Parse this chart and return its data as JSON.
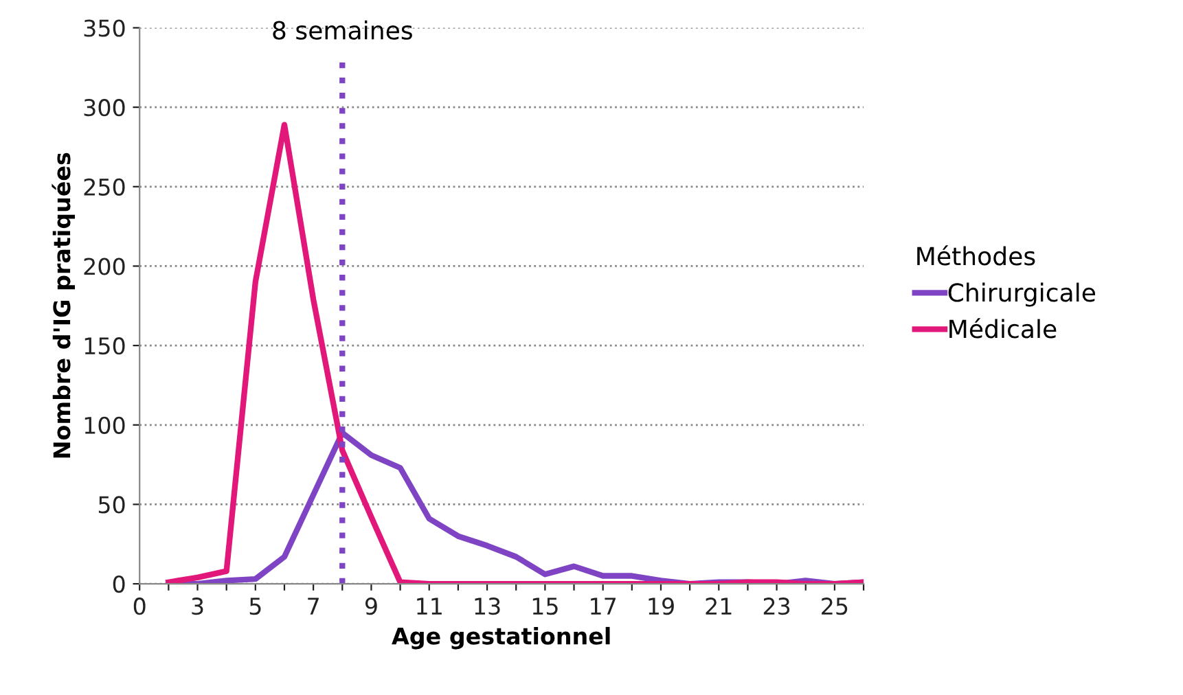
{
  "chart_data": {
    "type": "line",
    "xlabel": "Age gestationnel",
    "ylabel": "Nombre d'IG pratiquées",
    "legend_title": "Méthodes",
    "categories": [
      "0",
      null,
      "3",
      null,
      "5",
      null,
      "7",
      null,
      "9",
      null,
      "11",
      null,
      "13",
      null,
      "15",
      null,
      "17",
      null,
      "19",
      null,
      "21",
      null,
      "23",
      null,
      "25",
      null
    ],
    "series": [
      {
        "name": "Chirurgicale",
        "color": "#7f44c4",
        "values": [
          null,
          0,
          0,
          2,
          3,
          17,
          56,
          95,
          81,
          73,
          41,
          30,
          24,
          17,
          6,
          11,
          5,
          5,
          2,
          0,
          1,
          1,
          0,
          2,
          0,
          1
        ]
      },
      {
        "name": "Médicale",
        "color": "#e2177a",
        "values": [
          null,
          1,
          4,
          8,
          190,
          289,
          179,
          84,
          42,
          1,
          0,
          0,
          0,
          0,
          0,
          0,
          0,
          0,
          0,
          0,
          0,
          1,
          1,
          0,
          0,
          1
        ]
      }
    ],
    "ylim": [
      0,
      350
    ],
    "yticks": [
      0,
      50,
      100,
      150,
      200,
      250,
      300,
      350
    ],
    "grid": "y",
    "legend": "right",
    "marker": "none",
    "line_style": "solid",
    "annotations": [
      "8 semaines"
    ]
  }
}
